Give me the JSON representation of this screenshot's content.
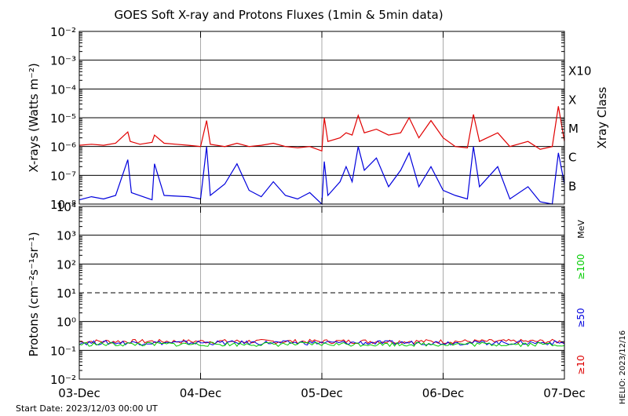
{
  "chart_data": [
    {
      "type": "line",
      "title": "GOES Soft X-ray and Protons Fluxes   (1min & 5min data)",
      "ylabel": "X-rays (Watts m⁻²)",
      "yscale": "log",
      "ylim": [
        1e-08,
        0.01
      ],
      "y_ticks": [
        "10⁻⁸",
        "10⁻⁷",
        "10⁻⁶",
        "10⁻⁵",
        "10⁻⁴",
        "10⁻³",
        "10⁻²"
      ],
      "right_axis_label": "Xray Class",
      "class_labels": [
        {
          "label": "B",
          "value": 1e-07
        },
        {
          "label": "C",
          "value": 1e-06
        },
        {
          "label": "M",
          "value": 1e-05
        },
        {
          "label": "X",
          "value": 0.0001
        },
        {
          "label": "X10",
          "value": 0.001
        }
      ],
      "x_ticks": [
        "03-Dec",
        "04-Dec",
        "05-Dec",
        "06-Dec",
        "07-Dec"
      ],
      "xlim_days": [
        0,
        4
      ],
      "grid": true,
      "series": [
        {
          "color": "#e00000",
          "points": [
            [
              0.0,
              1.1e-06
            ],
            [
              0.1,
              1.2e-06
            ],
            [
              0.2,
              1.1e-06
            ],
            [
              0.3,
              1.3e-06
            ],
            [
              0.4,
              3.2e-06
            ],
            [
              0.42,
              1.5e-06
            ],
            [
              0.5,
              1.2e-06
            ],
            [
              0.6,
              1.4e-06
            ],
            [
              0.62,
              2.5e-06
            ],
            [
              0.7,
              1.3e-06
            ],
            [
              0.8,
              1.2e-06
            ],
            [
              0.9,
              1.1e-06
            ],
            [
              1.0,
              1e-06
            ],
            [
              1.05,
              8e-06
            ],
            [
              1.08,
              1.2e-06
            ],
            [
              1.2,
              1e-06
            ],
            [
              1.3,
              1.3e-06
            ],
            [
              1.4,
              1e-06
            ],
            [
              1.5,
              1.1e-06
            ],
            [
              1.6,
              1.3e-06
            ],
            [
              1.7,
              1e-06
            ],
            [
              1.8,
              9e-07
            ],
            [
              1.9,
              1e-06
            ],
            [
              2.0,
              7e-07
            ],
            [
              2.02,
              1e-05
            ],
            [
              2.05,
              1.5e-06
            ],
            [
              2.15,
              2e-06
            ],
            [
              2.2,
              3e-06
            ],
            [
              2.25,
              2.5e-06
            ],
            [
              2.3,
              1.2e-05
            ],
            [
              2.35,
              3e-06
            ],
            [
              2.45,
              4e-06
            ],
            [
              2.55,
              2.5e-06
            ],
            [
              2.65,
              3e-06
            ],
            [
              2.72,
              1e-05
            ],
            [
              2.8,
              2e-06
            ],
            [
              2.9,
              8e-06
            ],
            [
              3.0,
              2e-06
            ],
            [
              3.1,
              1e-06
            ],
            [
              3.2,
              9e-07
            ],
            [
              3.25,
              1.3e-05
            ],
            [
              3.3,
              1.5e-06
            ],
            [
              3.45,
              3e-06
            ],
            [
              3.55,
              1e-06
            ],
            [
              3.7,
              1.5e-06
            ],
            [
              3.8,
              8e-07
            ],
            [
              3.9,
              1e-06
            ],
            [
              3.95,
              2.5e-05
            ],
            [
              4.0,
              1.5e-06
            ]
          ]
        },
        {
          "color": "#0000dd",
          "points": [
            [
              0.0,
              1.4e-08
            ],
            [
              0.1,
              1.8e-08
            ],
            [
              0.2,
              1.5e-08
            ],
            [
              0.3,
              2e-08
            ],
            [
              0.4,
              3.5e-07
            ],
            [
              0.43,
              2.5e-08
            ],
            [
              0.6,
              1.4e-08
            ],
            [
              0.62,
              2.5e-07
            ],
            [
              0.7,
              2e-08
            ],
            [
              0.9,
              1.8e-08
            ],
            [
              1.0,
              1.5e-08
            ],
            [
              1.05,
              1e-06
            ],
            [
              1.08,
              2e-08
            ],
            [
              1.2,
              5e-08
            ],
            [
              1.3,
              2.5e-07
            ],
            [
              1.4,
              3e-08
            ],
            [
              1.5,
              1.8e-08
            ],
            [
              1.6,
              6e-08
            ],
            [
              1.7,
              2e-08
            ],
            [
              1.8,
              1.5e-08
            ],
            [
              1.9,
              2.5e-08
            ],
            [
              2.0,
              1e-08
            ],
            [
              2.02,
              3e-07
            ],
            [
              2.05,
              2e-08
            ],
            [
              2.15,
              6e-08
            ],
            [
              2.2,
              2e-07
            ],
            [
              2.25,
              6e-08
            ],
            [
              2.3,
              1e-06
            ],
            [
              2.35,
              1.5e-07
            ],
            [
              2.45,
              4e-07
            ],
            [
              2.55,
              4e-08
            ],
            [
              2.65,
              1.5e-07
            ],
            [
              2.72,
              6e-07
            ],
            [
              2.8,
              4e-08
            ],
            [
              2.9,
              2e-07
            ],
            [
              3.0,
              3e-08
            ],
            [
              3.1,
              2e-08
            ],
            [
              3.2,
              1.5e-08
            ],
            [
              3.25,
              1e-06
            ],
            [
              3.3,
              4e-08
            ],
            [
              3.45,
              2e-07
            ],
            [
              3.55,
              1.5e-08
            ],
            [
              3.7,
              4e-08
            ],
            [
              3.8,
              1.2e-08
            ],
            [
              3.9,
              1e-08
            ],
            [
              3.95,
              6e-07
            ],
            [
              4.0,
              5e-08
            ]
          ]
        }
      ]
    },
    {
      "type": "line",
      "ylabel": "Protons (cm⁻²s⁻¹sr⁻¹)",
      "yscale": "log",
      "ylim": [
        0.01,
        10000.0
      ],
      "y_ticks": [
        "10⁻²",
        "10⁻¹",
        "10⁰",
        "10¹",
        "10²",
        "10³",
        "10⁴"
      ],
      "threshold_line": 10,
      "x_ticks": [
        "03-Dec",
        "04-Dec",
        "05-Dec",
        "06-Dec",
        "07-Dec"
      ],
      "xlim_days": [
        0,
        4
      ],
      "grid": true,
      "unit_label": "MeV",
      "legend": [
        {
          "label": "≥100",
          "color": "#00cc00"
        },
        {
          "label": "≥50",
          "color": "#0000dd"
        },
        {
          "label": "≥10",
          "color": "#dd0000"
        }
      ],
      "series": [
        {
          "color": "#dd0000",
          "base_value": 0.2
        },
        {
          "color": "#0000dd",
          "base_value": 0.18
        },
        {
          "color": "#00cc00",
          "base_value": 0.16
        }
      ]
    }
  ],
  "footer": {
    "start_date": "Start Date: 2023/12/03 00:00 UT",
    "credit": "HELIO: 2023/12/16"
  }
}
